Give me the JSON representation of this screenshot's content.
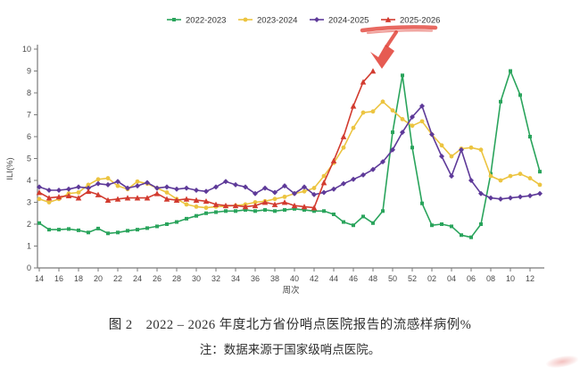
{
  "figure": {
    "caption_line1": "图 2　2022 – 2026 年度北方省份哨点医院报告的流感样病例%",
    "caption_line2": "注：数据来源于国家级哨点医院。"
  },
  "chart_data": {
    "type": "line",
    "title": "",
    "legend_position": "top",
    "grid": false,
    "x_axis": {
      "label": "周次",
      "tick_labels": [
        "14",
        "16",
        "18",
        "20",
        "22",
        "24",
        "26",
        "28",
        "30",
        "32",
        "34",
        "36",
        "38",
        "40",
        "42",
        "44",
        "46",
        "48",
        "50",
        "52",
        "02",
        "04",
        "06",
        "08",
        "10",
        "12"
      ]
    },
    "y_axis": {
      "label": "ILI(%)",
      "min": 0,
      "max": 10,
      "tick_step": 1
    },
    "weeks": [
      "14",
      "15",
      "16",
      "17",
      "18",
      "19",
      "20",
      "21",
      "22",
      "23",
      "24",
      "25",
      "26",
      "27",
      "28",
      "29",
      "30",
      "31",
      "32",
      "33",
      "34",
      "35",
      "36",
      "37",
      "38",
      "39",
      "40",
      "41",
      "42",
      "43",
      "44",
      "45",
      "46",
      "47",
      "48",
      "49",
      "50",
      "51",
      "52",
      "01",
      "02",
      "03",
      "04",
      "05",
      "06",
      "07",
      "08",
      "09",
      "10",
      "11",
      "12",
      "13"
    ],
    "series": [
      {
        "name": "2022-2023",
        "color": "#2aa45c",
        "marker": "square",
        "values": [
          2.05,
          1.75,
          1.75,
          1.78,
          1.72,
          1.62,
          1.8,
          1.58,
          1.62,
          1.7,
          1.75,
          1.82,
          1.9,
          2.0,
          2.1,
          2.25,
          2.38,
          2.5,
          2.55,
          2.6,
          2.6,
          2.65,
          2.6,
          2.65,
          2.6,
          2.65,
          2.7,
          2.65,
          2.6,
          2.6,
          2.45,
          2.1,
          1.95,
          2.35,
          2.05,
          2.6,
          6.2,
          8.8,
          5.5,
          2.95,
          1.95,
          2.0,
          1.9,
          1.5,
          1.4,
          2.0,
          4.3,
          7.6,
          9.0,
          7.9,
          6.0,
          4.4
        ]
      },
      {
        "name": "2023-2024",
        "color": "#ecc440",
        "marker": "circle",
        "values": [
          3.15,
          3.0,
          3.15,
          3.4,
          3.45,
          3.8,
          4.05,
          4.1,
          3.75,
          3.6,
          3.95,
          3.85,
          3.65,
          3.45,
          3.15,
          2.9,
          2.8,
          2.75,
          2.8,
          2.82,
          2.85,
          2.9,
          3.0,
          3.05,
          3.15,
          3.25,
          3.4,
          3.5,
          3.65,
          4.2,
          4.8,
          5.5,
          6.4,
          7.1,
          7.15,
          7.6,
          7.2,
          6.8,
          6.5,
          6.7,
          6.1,
          5.6,
          5.1,
          5.45,
          5.5,
          5.4,
          4.2,
          4.0,
          4.2,
          4.3,
          4.1,
          3.8
        ]
      },
      {
        "name": "2024-2025",
        "color": "#5e3a99",
        "marker": "diamond",
        "values": [
          3.7,
          3.55,
          3.55,
          3.6,
          3.7,
          3.65,
          3.85,
          3.8,
          3.95,
          3.65,
          3.75,
          3.9,
          3.65,
          3.7,
          3.6,
          3.65,
          3.55,
          3.5,
          3.7,
          3.95,
          3.8,
          3.7,
          3.4,
          3.65,
          3.45,
          3.75,
          3.4,
          3.7,
          3.35,
          3.45,
          3.6,
          3.85,
          4.05,
          4.25,
          4.5,
          4.85,
          5.4,
          6.2,
          6.9,
          7.4,
          6.1,
          5.1,
          4.2,
          5.4,
          4.0,
          3.4,
          3.2,
          3.15,
          3.2,
          3.25,
          3.3,
          3.4
        ]
      },
      {
        "name": "2025-2026",
        "color": "#d23b2f",
        "marker": "triangle",
        "values": [
          3.45,
          3.2,
          3.25,
          3.3,
          3.2,
          3.5,
          3.35,
          3.1,
          3.15,
          3.2,
          3.2,
          3.2,
          3.4,
          3.15,
          3.1,
          3.15,
          3.1,
          3.05,
          2.9,
          2.85,
          2.85,
          2.8,
          2.85,
          3.0,
          2.9,
          3.0,
          2.85,
          2.8,
          2.75,
          3.9,
          4.9,
          6.0,
          7.4,
          8.5,
          9.0
        ]
      }
    ],
    "annotations": [
      {
        "name": "hand-drawn-underline",
        "desc": "red marker stroke under the 2025-2026 legend entry"
      },
      {
        "name": "hand-drawn-arrow",
        "desc": "red arrow pointing down at the tip of the 2025-2026 line (week 48)"
      },
      {
        "name": "red-smudge",
        "desc": "faint red smudge at bottom-right corner"
      }
    ]
  }
}
